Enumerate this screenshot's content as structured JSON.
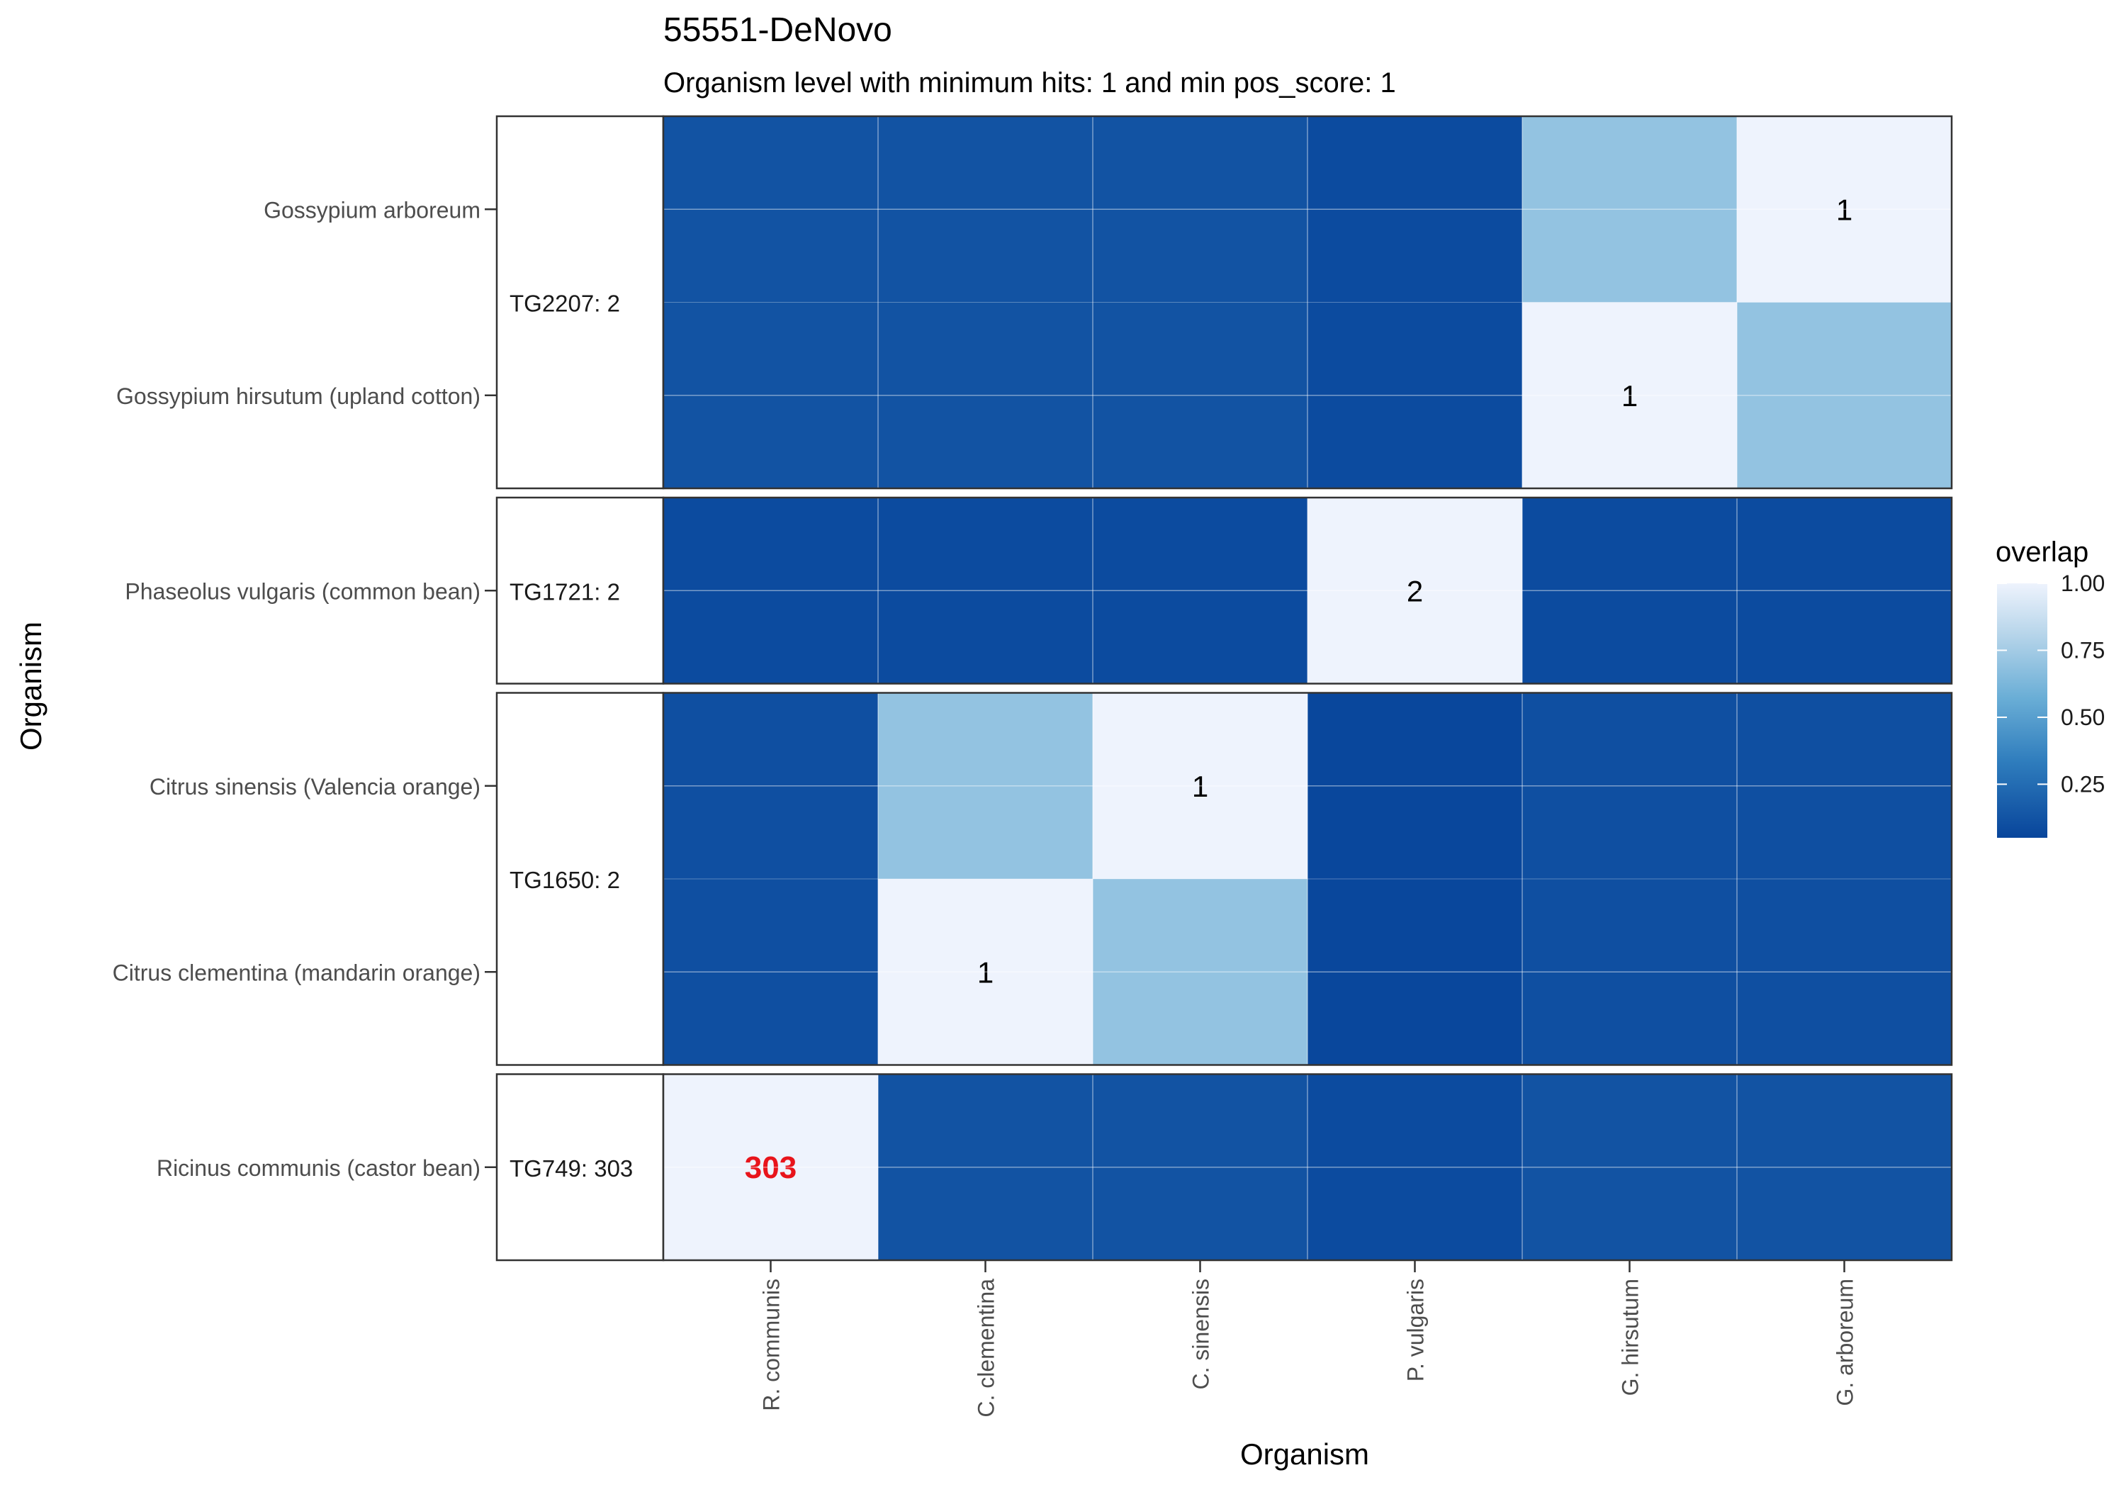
{
  "chart_data": {
    "type": "heatmap",
    "title": "55551-DeNovo",
    "subtitle": "Organism level with minimum hits: 1 and min pos_score: 1",
    "xlabel": "Organism",
    "ylabel": "Organism",
    "x_categories": [
      "R. communis",
      "C. clementina",
      "C. sinensis",
      "P. vulgaris",
      "G. hirsutum",
      "G. arboreum"
    ],
    "groups": [
      {
        "label": "TG2207:   2",
        "rows": [
          {
            "name": "Gossypium arboreum",
            "values": [
              0.12,
              0.12,
              0.12,
              0.08,
              0.7,
              1.0
            ],
            "labels": [
              "",
              "",
              "",
              "",
              "",
              "1"
            ]
          },
          {
            "name": "Gossypium hirsutum (upland cotton)",
            "values": [
              0.12,
              0.12,
              0.12,
              0.08,
              1.0,
              0.7
            ],
            "labels": [
              "",
              "",
              "",
              "",
              "1",
              ""
            ]
          }
        ]
      },
      {
        "label": "TG1721:   2",
        "rows": [
          {
            "name": "Phaseolus vulgaris (common bean)",
            "values": [
              0.08,
              0.08,
              0.08,
              1.0,
              0.08,
              0.08
            ],
            "labels": [
              "",
              "",
              "",
              "2",
              "",
              ""
            ]
          }
        ]
      },
      {
        "label": "TG1650:   2",
        "rows": [
          {
            "name": "Citrus sinensis (Valencia orange)",
            "values": [
              0.1,
              0.7,
              1.0,
              0.06,
              0.1,
              0.1
            ],
            "labels": [
              "",
              "",
              "1",
              "",
              "",
              ""
            ]
          },
          {
            "name": "Citrus clementina (mandarin orange)",
            "values": [
              0.1,
              1.0,
              0.7,
              0.06,
              0.1,
              0.1
            ],
            "labels": [
              "",
              "1",
              "",
              "",
              "",
              ""
            ]
          }
        ]
      },
      {
        "label": "TG749: 303",
        "rows": [
          {
            "name": "Ricinus communis (castor bean)",
            "values": [
              1.0,
              0.12,
              0.12,
              0.08,
              0.12,
              0.12
            ],
            "labels": [
              "303",
              "",
              "",
              "",
              "",
              ""
            ]
          }
        ]
      }
    ],
    "highlight_label_color": "#e8141b",
    "legend": {
      "title": "overlap",
      "placement": "right",
      "ticks": [
        "0.25",
        "0.50",
        "0.75",
        "1.00"
      ],
      "tick_values": [
        0.25,
        0.5,
        0.75,
        1.0
      ],
      "range": [
        0.05,
        1.0
      ]
    },
    "colors": {
      "low": "#08459b",
      "mid_low": "#2f7dbd",
      "mid": "#6aaed6",
      "high_mid": "#b7d5ea",
      "high": "#eef3fd"
    }
  }
}
